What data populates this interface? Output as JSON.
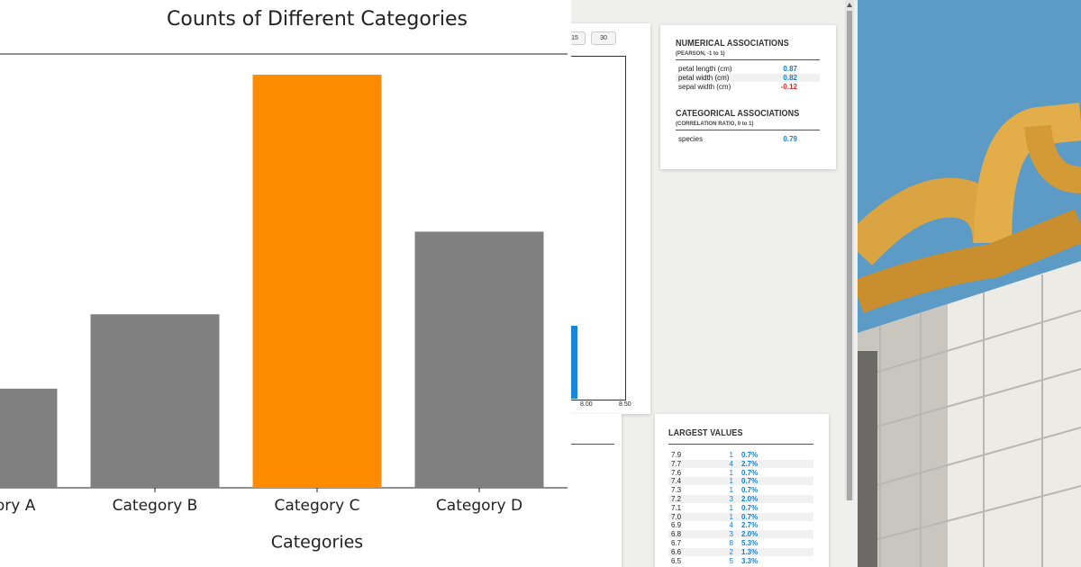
{
  "chart_data": {
    "type": "bar",
    "title": "Counts of Different Categories",
    "x_label": "Categories",
    "categories": [
      "Category A",
      "Category B",
      "Category C",
      "Category D"
    ],
    "values": [
      12,
      21,
      50,
      31
    ],
    "colors": [
      "#808080",
      "#808080",
      "#ff8c00",
      "#808080"
    ],
    "ylim": [
      0,
      52.5
    ]
  },
  "ui": {
    "buttons": [
      "15",
      "30"
    ],
    "histogram_xticks": [
      "8.00",
      "8.50"
    ],
    "numerical": {
      "title": "NUMERICAL ASSOCIATIONS",
      "subtitle": "(PEARSON, -1 to 1)",
      "rows": [
        [
          "petal length (cm)",
          "0.87"
        ],
        [
          "petal width (cm)",
          "0.82"
        ],
        [
          "sepal width (cm)",
          "-0.12"
        ]
      ]
    },
    "categorical": {
      "title": "CATEGORICAL ASSOCIATIONS",
      "subtitle": "(CORRELATION RATIO, 0 to 1)",
      "rows": [
        [
          "species",
          "0.79"
        ]
      ]
    },
    "largest": {
      "title": "LARGEST VALUES",
      "rows": [
        [
          "7.9",
          "1",
          "0.7%"
        ],
        [
          "7.7",
          "4",
          "2.7%"
        ],
        [
          "7.6",
          "1",
          "0.7%"
        ],
        [
          "7.4",
          "1",
          "0.7%"
        ],
        [
          "7.3",
          "1",
          "0.7%"
        ],
        [
          "7.2",
          "3",
          "2.0%"
        ],
        [
          "7.1",
          "1",
          "0.7%"
        ],
        [
          "7.0",
          "1",
          "0.7%"
        ],
        [
          "6.9",
          "4",
          "2.7%"
        ],
        [
          "6.8",
          "3",
          "2.0%"
        ],
        [
          "6.7",
          "8",
          "5.3%"
        ],
        [
          "6.6",
          "2",
          "1.3%"
        ],
        [
          "6.5",
          "5",
          "3.3%"
        ]
      ]
    }
  }
}
